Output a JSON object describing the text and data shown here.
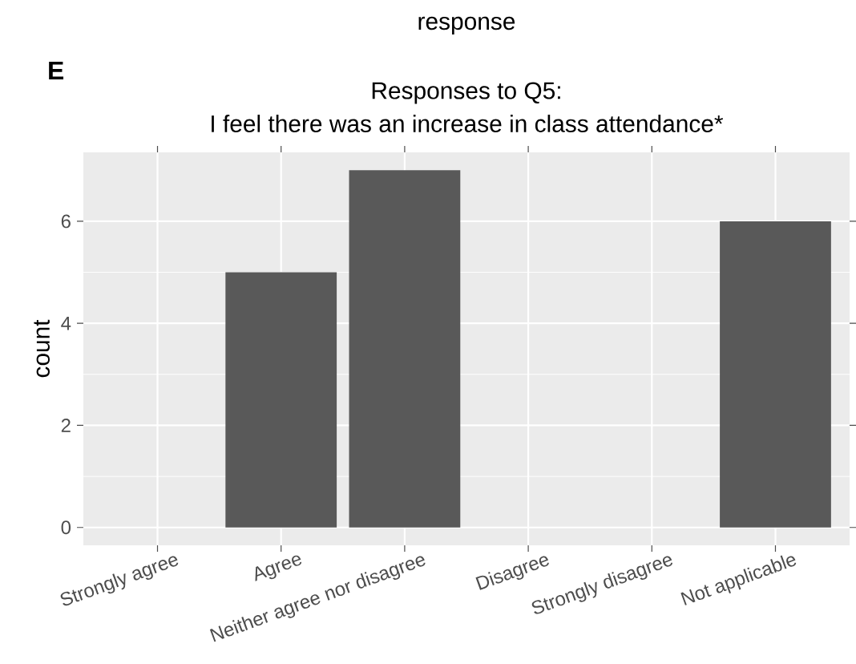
{
  "chart_data": {
    "type": "bar",
    "xlabel": "response",
    "title": "Responses to Q5:",
    "subtitle": "I feel there was an increase in class attendance*",
    "ylabel": "count",
    "annotations": [
      "E"
    ],
    "categories": [
      "Strongly agree",
      "Agree",
      "Neither agree nor disagree",
      "Disagree",
      "Strongly disagree",
      "Not applicable"
    ],
    "values": [
      0,
      5,
      7,
      0,
      0,
      6
    ],
    "color": "#595959",
    "ylim": [
      -0.35,
      7.35
    ],
    "yticks": [
      0,
      2,
      4,
      6
    ],
    "grid": true
  }
}
